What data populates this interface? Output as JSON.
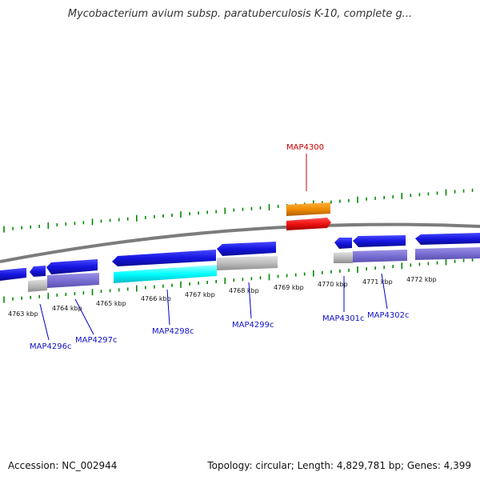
{
  "header": {
    "title": "Mycobacterium avium subsp. paratuberculosis K-10, complete g..."
  },
  "footer": {
    "accession": "Accession: NC_002944",
    "summary": "Topology: circular; Length: 4,829,781 bp; Genes: 4,399"
  },
  "axis": {
    "ticks": [
      "4763 kbp",
      "4764 kbp",
      "4765 kbp",
      "4766 kbp",
      "4767 kbp",
      "4768 kbp",
      "4769 kbp",
      "4770 kbp",
      "4771 kbp",
      "4772 kbp"
    ]
  },
  "genes": [
    {
      "label": "MAP4296c",
      "strand": "minus"
    },
    {
      "label": "MAP4297c",
      "strand": "minus"
    },
    {
      "label": "MAP4298c",
      "strand": "minus"
    },
    {
      "label": "MAP4299c",
      "strand": "minus"
    },
    {
      "label": "MAP4300",
      "strand": "plus"
    },
    {
      "label": "MAP4301c",
      "strand": "minus"
    },
    {
      "label": "MAP4302c",
      "strand": "minus"
    }
  ],
  "colors": {
    "cds": "#1515e0",
    "gene_feature": "#7a6fd2",
    "highlight": "#00ffff",
    "gray_feature": "#bcbcbc",
    "orange_feature": "#f08c00",
    "red_feature": "#ee1111",
    "tick_green": "#008800",
    "backbone": "#7c7c7c"
  }
}
